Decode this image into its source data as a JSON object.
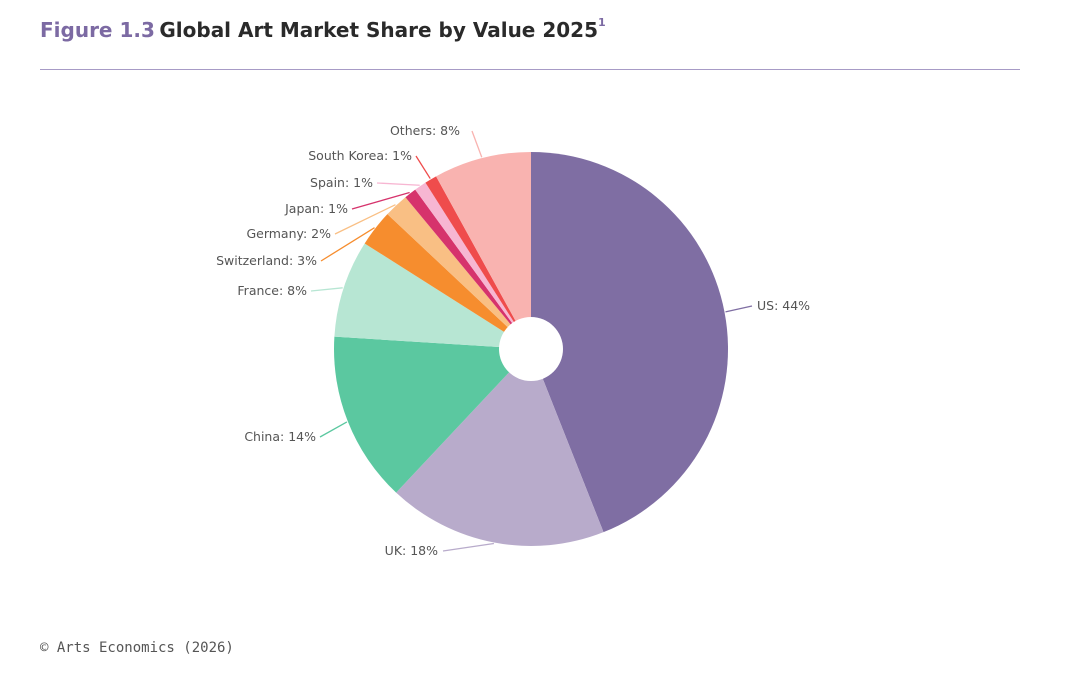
{
  "header": {
    "figure_number": "Figure 1.3",
    "title": "Global Art Market Share by Value 2025",
    "footnote_mark": "1"
  },
  "footer": {
    "source": "© Arts Economics (2026)"
  },
  "chart_data": {
    "type": "pie",
    "title": "Global Art Market Share by Value 2025",
    "donut": true,
    "start_angle_deg": 0,
    "direction": "clockwise",
    "slices": [
      {
        "label": "US: 44%",
        "name": "US",
        "value": 44,
        "color": "#7f6ea3"
      },
      {
        "label": "UK: 18%",
        "name": "UK",
        "value": 18,
        "color": "#b8abcb"
      },
      {
        "label": "China: 14%",
        "name": "China",
        "value": 14,
        "color": "#5bc8a0"
      },
      {
        "label": "France: 8%",
        "name": "France",
        "value": 8,
        "color": "#b7e6d3"
      },
      {
        "label": "Switzerland: 3%",
        "name": "Switzerland",
        "value": 3,
        "color": "#f68d2e"
      },
      {
        "label": "Germany: 2%",
        "name": "Germany",
        "value": 2,
        "color": "#f9bf84"
      },
      {
        "label": "Japan: 1%",
        "name": "Japan",
        "value": 1,
        "color": "#d6336c"
      },
      {
        "label": "Spain: 1%",
        "name": "Spain",
        "value": 1,
        "color": "#f7b6d2"
      },
      {
        "label": "South Korea: 1%",
        "name": "South Korea",
        "value": 1,
        "color": "#ef4c4c"
      },
      {
        "label": "Others: 8%",
        "name": "Others",
        "value": 8,
        "color": "#f9b3b0"
      }
    ]
  }
}
